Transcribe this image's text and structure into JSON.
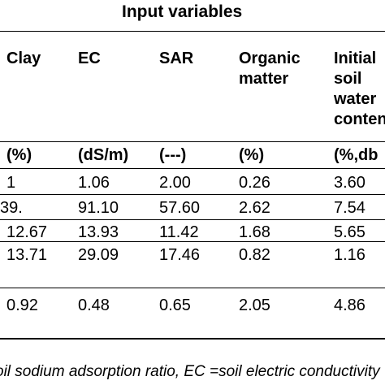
{
  "table": {
    "title": "Input variables",
    "columns": [
      {
        "header": "Clay",
        "unit": "(%)"
      },
      {
        "header": "EC",
        "unit": "(dS/m)"
      },
      {
        "header": "SAR",
        "unit": "(---)"
      },
      {
        "header": "Organic\nmatter",
        "unit": "(%)"
      },
      {
        "header": "Initial\nsoil\nwater\ncontent",
        "unit": "(%,db"
      }
    ],
    "rows": [
      [
        "1",
        "1.06",
        "2.00",
        "0.26",
        "3.60"
      ],
      [
        "39.",
        "91.10",
        "57.60",
        "2.62",
        "7.54"
      ],
      [
        "12.67",
        "13.93",
        "11.42",
        "1.68",
        "5.65"
      ],
      [
        "13.71",
        "29.09",
        "17.46",
        "0.82",
        "1.16"
      ],
      [
        "0.92",
        "0.48",
        "0.65",
        "2.05",
        "4.86"
      ]
    ],
    "footnote": "oil sodium adsorption ratio, EC =soil electric conductivity"
  }
}
